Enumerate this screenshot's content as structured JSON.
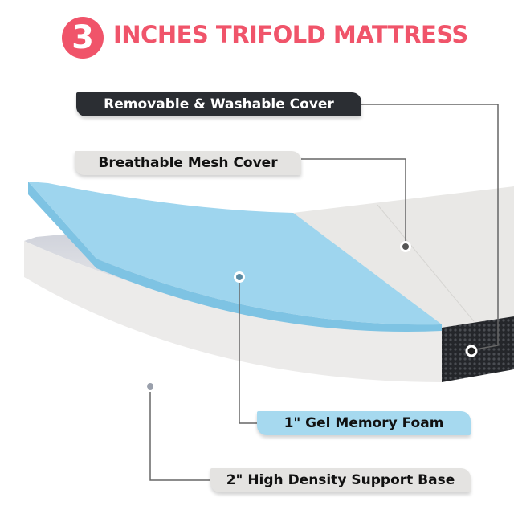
{
  "header": {
    "number": "3",
    "title": "INCHES TRIFOLD MATTRESS"
  },
  "labels": {
    "cover": "Removable & Washable Cover",
    "mesh": "Breathable Mesh Cover",
    "gel": "1\" Gel  Memory Foam",
    "base": "2\"  High Density Support Base"
  },
  "colors": {
    "accent": "#f0546a",
    "dark_label": "#2b2e33",
    "light_label": "#e4e3e1",
    "gel_label": "#a6d9ef",
    "foam_blue": "#9ed5ee"
  }
}
